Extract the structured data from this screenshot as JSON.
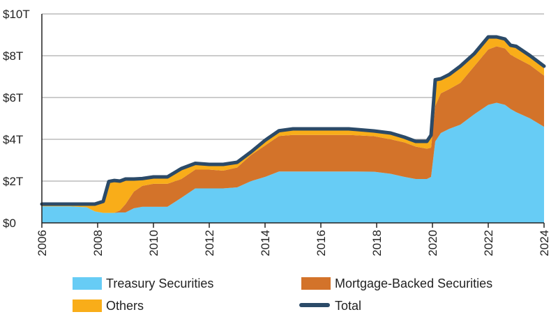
{
  "chart_data": {
    "type": "area",
    "title": "",
    "xlabel": "",
    "ylabel": "",
    "xlim": [
      2006,
      2024
    ],
    "ylim": [
      0,
      10
    ],
    "grid": true,
    "legend_position": "bottom",
    "x_ticks": [
      2006,
      2008,
      2010,
      2012,
      2014,
      2016,
      2018,
      2020,
      2022,
      2024
    ],
    "x_tick_labels": [
      "2006",
      "2008",
      "2010",
      "2012",
      "2014",
      "2016",
      "2018",
      "2020",
      "2022",
      "2024"
    ],
    "y_ticks": [
      0,
      2,
      4,
      6,
      8,
      10
    ],
    "y_tick_labels": [
      "$0",
      "$2T",
      "$4T",
      "$6T",
      "$8T",
      "$10T"
    ],
    "x": [
      2006.0,
      2007.0,
      2007.6,
      2007.9,
      2008.2,
      2008.4,
      2008.6,
      2008.8,
      2009.0,
      2009.3,
      2009.6,
      2010.0,
      2010.5,
      2011.0,
      2011.5,
      2012.0,
      2012.5,
      2013.0,
      2013.5,
      2014.0,
      2014.5,
      2015.0,
      2016.0,
      2017.0,
      2017.9,
      2018.5,
      2019.0,
      2019.4,
      2019.8,
      2019.95,
      2020.1,
      2020.3,
      2020.6,
      2021.0,
      2021.5,
      2022.0,
      2022.3,
      2022.6,
      2022.8,
      2023.0,
      2023.5,
      2024.0
    ],
    "series": [
      {
        "name": "Treasury Securities",
        "color": "#67ccf5",
        "values": [
          0.79,
          0.79,
          0.75,
          0.55,
          0.48,
          0.48,
          0.48,
          0.5,
          0.5,
          0.7,
          0.77,
          0.77,
          0.77,
          1.2,
          1.65,
          1.65,
          1.65,
          1.7,
          2.0,
          2.2,
          2.46,
          2.46,
          2.46,
          2.46,
          2.45,
          2.35,
          2.2,
          2.1,
          2.1,
          2.2,
          3.9,
          4.3,
          4.5,
          4.7,
          5.2,
          5.65,
          5.75,
          5.65,
          5.45,
          5.3,
          5.0,
          4.6
        ]
      },
      {
        "name": "Mortgage-Backed Securities",
        "color": "#d3732a",
        "values": [
          0,
          0,
          0,
          0,
          0,
          0,
          0,
          0.1,
          0.4,
          0.8,
          1.0,
          1.1,
          1.1,
          0.9,
          0.9,
          0.9,
          0.85,
          0.95,
          1.25,
          1.5,
          1.7,
          1.75,
          1.75,
          1.75,
          1.7,
          1.65,
          1.65,
          1.55,
          1.45,
          1.4,
          1.7,
          1.9,
          1.9,
          2.0,
          2.3,
          2.65,
          2.7,
          2.7,
          2.6,
          2.6,
          2.55,
          2.45
        ]
      },
      {
        "name": "Others",
        "color": "#f9ad19",
        "values": [
          0.11,
          0.11,
          0.15,
          0.35,
          0.55,
          1.5,
          1.55,
          1.4,
          1.2,
          0.6,
          0.35,
          0.33,
          0.33,
          0.5,
          0.3,
          0.25,
          0.3,
          0.25,
          0.15,
          0.25,
          0.25,
          0.29,
          0.29,
          0.29,
          0.25,
          0.3,
          0.25,
          0.25,
          0.35,
          0.6,
          1.25,
          0.7,
          0.7,
          0.8,
          0.6,
          0.6,
          0.45,
          0.45,
          0.45,
          0.55,
          0.45,
          0.45
        ]
      },
      {
        "name": "Total",
        "color": "#2b4a68",
        "values": [
          0.9,
          0.9,
          0.9,
          0.9,
          1.03,
          1.98,
          2.03,
          2.0,
          2.1,
          2.1,
          2.12,
          2.2,
          2.2,
          2.6,
          2.85,
          2.8,
          2.8,
          2.9,
          3.4,
          3.95,
          4.41,
          4.5,
          4.5,
          4.5,
          4.4,
          4.3,
          4.1,
          3.9,
          3.9,
          4.2,
          6.85,
          6.9,
          7.1,
          7.5,
          8.1,
          8.9,
          8.9,
          8.8,
          8.5,
          8.45,
          8.0,
          7.5
        ]
      }
    ]
  }
}
